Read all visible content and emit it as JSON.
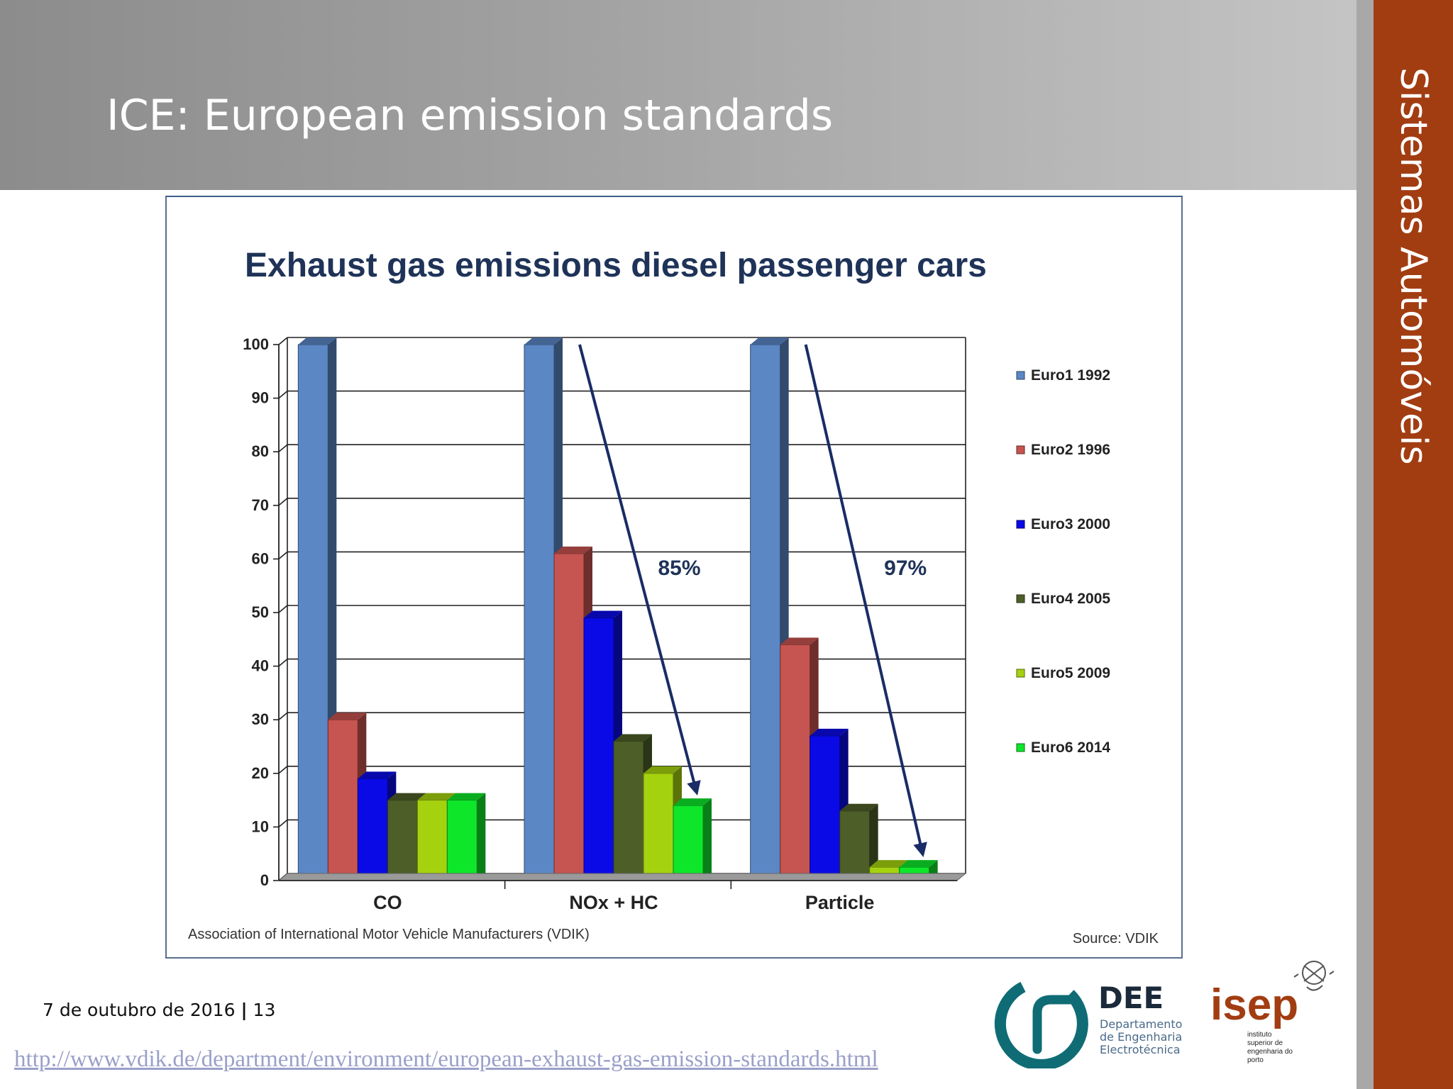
{
  "slide": {
    "title": "ICE: European emission standards",
    "side_label": "Sistemas Automóveis",
    "date": "7 de outubro de 2016",
    "separator": "|",
    "page_number": "13",
    "url": "http://www.vdik.de/department/environment/european-exhaust-gas-emission-standards.html"
  },
  "logos": {
    "dee": {
      "name": "DEE",
      "line1": "Departamento",
      "line2": "de Engenharia",
      "line3": "Electrotécnica"
    },
    "isep": {
      "name": "isep",
      "line1": "instituto",
      "line2": "superior de",
      "line3": "engenharia do",
      "line4": "porto"
    }
  },
  "chart_data": {
    "type": "bar",
    "title": "Exhaust gas emissions diesel passenger cars",
    "categories": [
      "CO",
      "NOx + HC",
      "Particle"
    ],
    "series": [
      {
        "name": "Euro1 1992",
        "values": [
          100,
          100,
          100
        ],
        "color": "#5b87c5"
      },
      {
        "name": "Euro2 1996",
        "values": [
          30,
          61,
          44
        ],
        "color": "#c65450"
      },
      {
        "name": "Euro3 2000",
        "values": [
          19,
          49,
          27
        ],
        "color": "#0a0ae6"
      },
      {
        "name": "Euro4 2005",
        "values": [
          15,
          26,
          13
        ],
        "color": "#4d5e28"
      },
      {
        "name": "Euro5 2009",
        "values": [
          15,
          20,
          2.5
        ],
        "color": "#a5d20e"
      },
      {
        "name": "Euro6 2014",
        "values": [
          15,
          14,
          2.5
        ],
        "color": "#0ee62a"
      }
    ],
    "ylim": [
      0,
      100
    ],
    "yticks": [
      "0",
      "10",
      "20",
      "30",
      "40",
      "50",
      "60",
      "70",
      "80",
      "90",
      "100"
    ],
    "grid": true,
    "legend": "right",
    "annotations": [
      {
        "text": "85%",
        "category": "NOx + HC"
      },
      {
        "text": "97%",
        "category": "Particle"
      }
    ],
    "footnote_left": "Association of International  Motor Vehicle Manufacturers  (VDIK)",
    "footnote_right": "Source: VDIK"
  }
}
